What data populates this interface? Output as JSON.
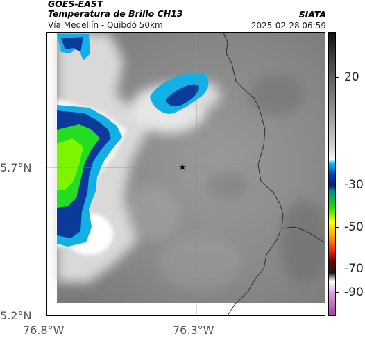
{
  "header": {
    "satellite": "GOES-EAST",
    "product": "Temperatura de Brillo CH13",
    "route": "Vía Medellín - Quibdó 50km",
    "source": "SIATA",
    "datetime": "2025-02-28 06:59"
  },
  "axes": {
    "lat_labels": [
      "5.7°N",
      "5.2°N"
    ],
    "lon_labels": [
      "76.8°W",
      "76.3°W"
    ]
  },
  "colorbar": {
    "tick_labels": [
      "20",
      "-30",
      "-50",
      "-70",
      "-90"
    ],
    "colors": [
      "#c066c8",
      "#ffffff",
      "#1a1a1a",
      "#ff2200",
      "#ffa500",
      "#ffff00",
      "#22dd00",
      "#009090",
      "#0030a0",
      "#00aaff",
      "#f4f4f4",
      "#111111"
    ]
  },
  "map": {
    "marker": "star-icon",
    "colors": {
      "background": "#8c8c8c",
      "border_line": "#222222",
      "grid_line": "#909090",
      "deep_blue": "#0a3a9a",
      "cyan": "#11b0e6",
      "green": "#22dd22",
      "yellow_green": "#b6ff00"
    }
  }
}
